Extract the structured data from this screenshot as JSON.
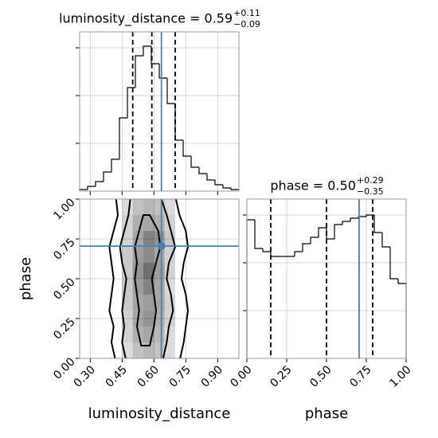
{
  "chart_data": [
    {
      "type": "histogram",
      "title": "luminosity_distance = 0.59",
      "title_sup": "+0.11",
      "title_sub": "−0.09",
      "bins": [
        0.25,
        0.2875,
        0.325,
        0.3625,
        0.4,
        0.4375,
        0.475,
        0.5125,
        0.55,
        0.5875,
        0.625,
        0.6625,
        0.7,
        0.7375,
        0.775,
        0.8125,
        0.85,
        0.8875,
        0.925,
        0.9625,
        1.0
      ],
      "counts": [
        2,
        6,
        12,
        24,
        40,
        92,
        130,
        170,
        182,
        160,
        142,
        110,
        64,
        44,
        30,
        22,
        14,
        8,
        4,
        2
      ],
      "xlim": [
        0.25,
        1.0
      ],
      "xticks": [
        0.3,
        0.45,
        0.6,
        0.75,
        0.9
      ],
      "ylim": [
        0,
        200
      ],
      "yticks": [
        60,
        120,
        180
      ],
      "quantiles": [
        0.5,
        0.59,
        0.7
      ],
      "truth": 0.635,
      "color": "#000000",
      "truth_color": "#4682b4",
      "grid": true
    },
    {
      "type": "contour",
      "xlabel": "luminosity_distance",
      "ylabel": "phase",
      "xlim": [
        0.25,
        1.0
      ],
      "xticks": [
        {
          "value": 0.3,
          "label": "0.30"
        },
        {
          "value": 0.45,
          "label": "0.45"
        },
        {
          "value": 0.6,
          "label": "0.60"
        },
        {
          "value": 0.75,
          "label": "0.75"
        },
        {
          "value": 0.9,
          "label": "0.90"
        }
      ],
      "ylim": [
        0,
        1
      ],
      "yticks": [
        {
          "value": 0,
          "label": "0.00"
        },
        {
          "value": 0.25,
          "label": "0.25"
        },
        {
          "value": 0.5,
          "label": "0.50"
        },
        {
          "value": 0.75,
          "label": "0.75"
        },
        {
          "value": 1,
          "label": "1.00"
        }
      ],
      "density": {
        "x_edges": [
          0.45,
          0.5,
          0.55,
          0.6,
          0.65,
          0.7
        ],
        "y_edges": [
          0,
          0.1,
          0.2,
          0.3,
          0.4,
          0.5,
          0.6,
          0.7,
          0.8,
          0.9,
          1
        ],
        "values": [
          [
            0.2,
            0.35,
            0.4,
            0.35,
            0.2
          ],
          [
            0.25,
            0.45,
            0.5,
            0.4,
            0.2
          ],
          [
            0.25,
            0.5,
            0.6,
            0.45,
            0.25
          ],
          [
            0.3,
            0.5,
            0.55,
            0.5,
            0.25
          ],
          [
            0.3,
            0.55,
            0.7,
            0.5,
            0.2
          ],
          [
            0.3,
            0.6,
            0.8,
            0.55,
            0.25
          ],
          [
            0.3,
            0.55,
            0.65,
            0.5,
            0.25
          ],
          [
            0.25,
            0.5,
            0.7,
            0.6,
            0.3
          ],
          [
            0.25,
            0.45,
            0.5,
            0.45,
            0.25
          ],
          [
            0.2,
            0.35,
            0.4,
            0.35,
            0.2
          ]
        ]
      },
      "contours": [
        {
          "y": [
            -0.02,
            0.1,
            0.2,
            0.3,
            0.4,
            0.5,
            0.6,
            0.7,
            0.8,
            0.9,
            1.02
          ],
          "left": [
            0.42,
            0.4,
            0.41,
            0.39,
            0.4,
            0.41,
            0.4,
            0.39,
            0.41,
            0.43,
            0.42
          ],
          "right": [
            0.72,
            0.74,
            0.75,
            0.76,
            0.75,
            0.73,
            0.74,
            0.76,
            0.75,
            0.72,
            0.7
          ]
        },
        {
          "y": [
            -0.02,
            0.1,
            0.2,
            0.3,
            0.4,
            0.5,
            0.6,
            0.7,
            0.8,
            0.9,
            1.02
          ],
          "left": [
            0.47,
            0.45,
            0.46,
            0.45,
            0.46,
            0.47,
            0.45,
            0.44,
            0.46,
            0.48,
            0.49
          ],
          "right": [
            0.64,
            0.66,
            0.67,
            0.69,
            0.68,
            0.66,
            0.67,
            0.7,
            0.68,
            0.66,
            0.63
          ]
        },
        {
          "y": [
            0.08,
            0.2,
            0.3,
            0.4,
            0.5,
            0.6,
            0.7,
            0.8,
            0.9
          ],
          "left": [
            0.54,
            0.52,
            0.53,
            0.52,
            0.51,
            0.52,
            0.51,
            0.53,
            0.55
          ],
          "right": [
            0.58,
            0.6,
            0.61,
            0.6,
            0.59,
            0.61,
            0.63,
            0.62,
            0.58
          ]
        }
      ],
      "truth": [
        0.635,
        0.705
      ],
      "truth_color": "#4682b4",
      "grid": true
    },
    {
      "type": "histogram",
      "title": "phase = 0.50",
      "title_sup": "+0.29",
      "title_sub": "−0.35",
      "xlabel": "phase",
      "bins": [
        0,
        0.05,
        0.1,
        0.15,
        0.2,
        0.25,
        0.3,
        0.35,
        0.4,
        0.45,
        0.5,
        0.55,
        0.6,
        0.65,
        0.7,
        0.75,
        0.8,
        0.85,
        0.9,
        0.95,
        1
      ],
      "counts": [
        174,
        138,
        134,
        128,
        128,
        128,
        134,
        144,
        152,
        164,
        150,
        168,
        172,
        176,
        178,
        180,
        158,
        140,
        100,
        94
      ],
      "xlim": [
        0,
        1
      ],
      "xticks": [
        {
          "value": 0,
          "label": "0.00"
        },
        {
          "value": 0.25,
          "label": "0.25"
        },
        {
          "value": 0.5,
          "label": "0.50"
        },
        {
          "value": 0.75,
          "label": "0.75"
        },
        {
          "value": 1,
          "label": "1.00"
        }
      ],
      "ylim": [
        0,
        200
      ],
      "yticks": [
        60,
        120,
        180
      ],
      "quantiles": [
        0.15,
        0.5,
        0.79
      ],
      "truth": 0.705,
      "color": "#000000",
      "truth_color": "#4682b4",
      "grid": true
    }
  ]
}
